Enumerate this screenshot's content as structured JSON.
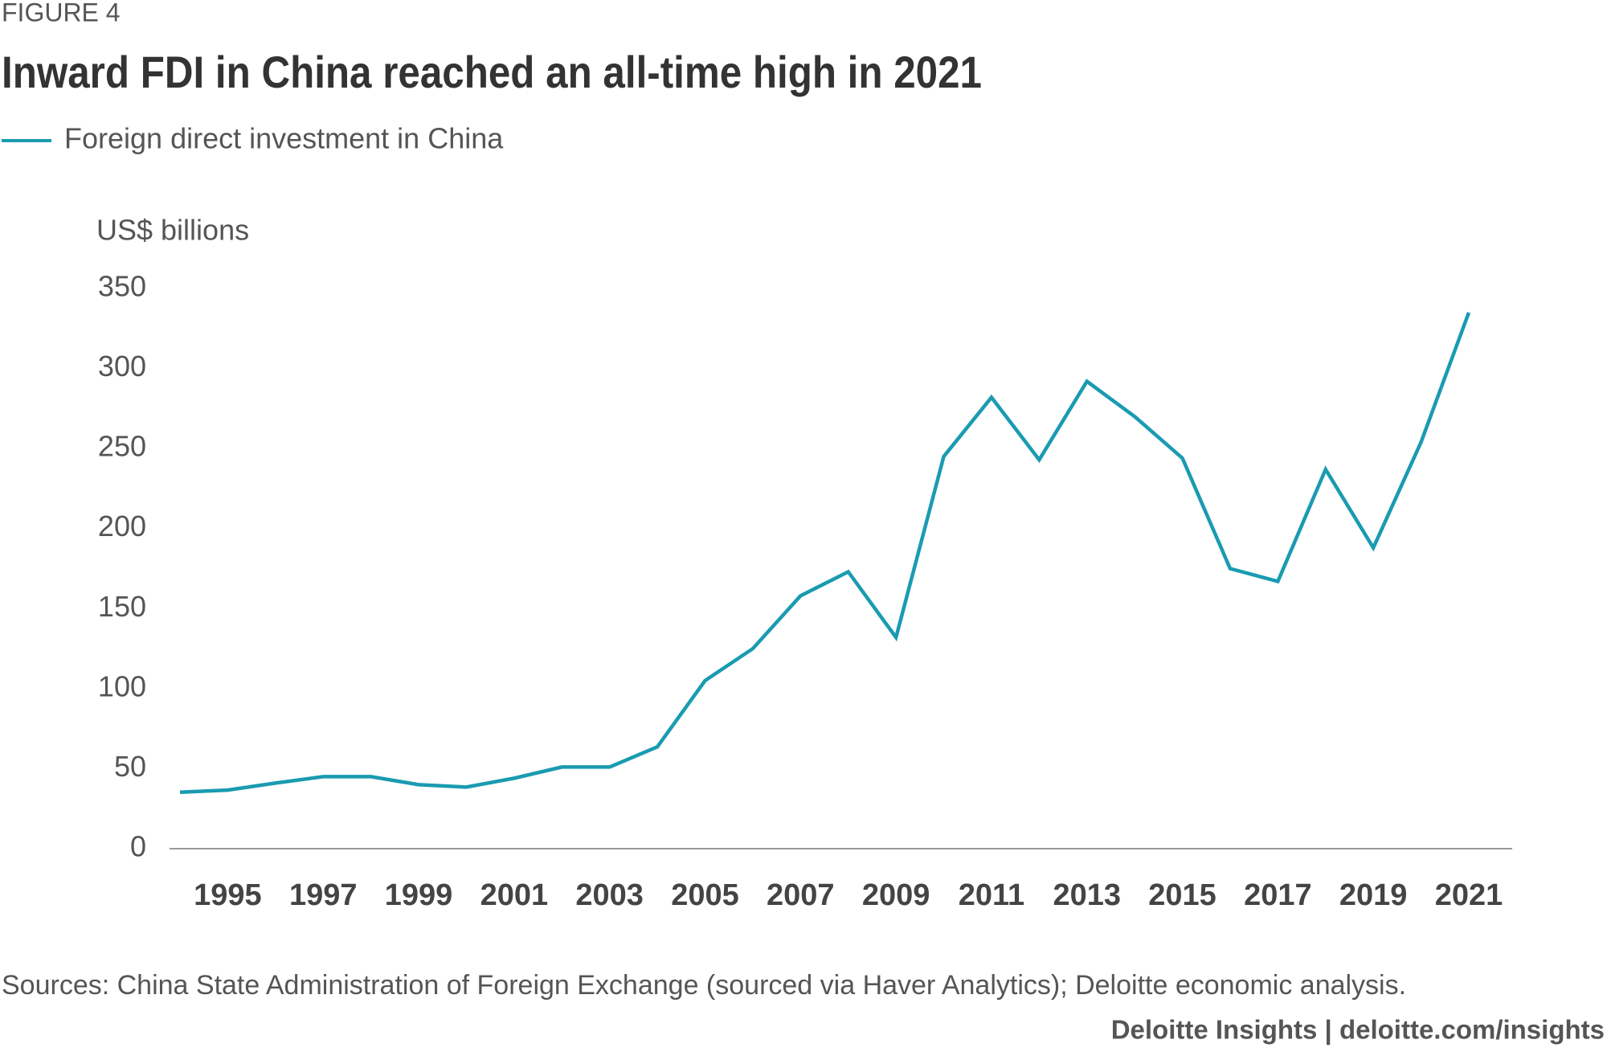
{
  "figure_label": "FIGURE 4",
  "chart_data": {
    "type": "line",
    "title": "Inward FDI in China reached an all-time high in 2021",
    "y_axis_label": "US$ billions",
    "categories": [
      null,
      "1995",
      null,
      "1997",
      null,
      "1999",
      null,
      "2001",
      null,
      "2003",
      null,
      "2005",
      null,
      "2007",
      null,
      "2009",
      null,
      "2011",
      null,
      "2013",
      null,
      "2015",
      null,
      "2017",
      null,
      "2019",
      null,
      "2021"
    ],
    "series": [
      {
        "name": "Foreign direct investment in China",
        "color": "#1a9bb1",
        "values": [
          35.3,
          36.6,
          41,
          45,
          45,
          40,
          38.5,
          44,
          51,
          51,
          63.6,
          105,
          125,
          158,
          173,
          132,
          245,
          282,
          243,
          292,
          270,
          244,
          175,
          167,
          237,
          188,
          254,
          335
        ]
      }
    ],
    "ylim": [
      0,
      350
    ],
    "yticks": [
      0,
      50,
      100,
      150,
      200,
      250,
      300,
      350
    ],
    "legend": "top-left",
    "grid": false
  },
  "source": "Sources: China State Administration of Foreign Exchange (sourced via Haver Analytics); Deloitte economic analysis.",
  "footer": "Deloitte Insights | deloitte.com/insights"
}
